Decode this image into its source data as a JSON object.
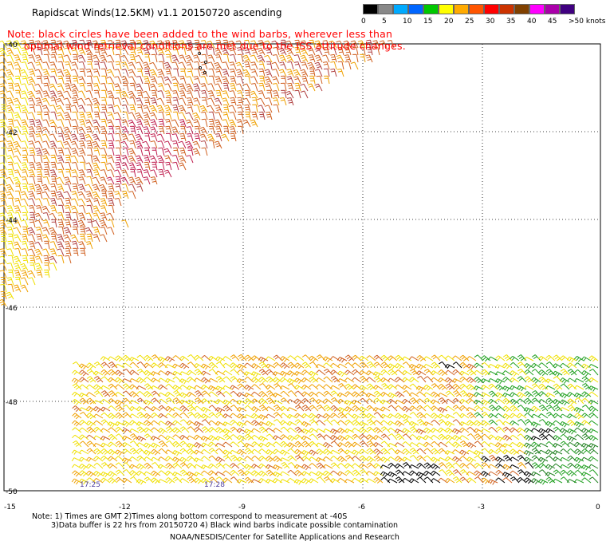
{
  "header": {
    "title": "Rapidscat Winds(12.5KM) v1.1 20150720 ascending",
    "note_line1": "Note: black circles have been added to the wind barbs, wherever less than",
    "note_line2": "optimal wind retrieval conditions are met due to the ISS attitude changes."
  },
  "scale": {
    "labels": [
      "0",
      "5",
      "10",
      "15",
      "20",
      "25",
      "30",
      "35",
      "40",
      "45",
      ">50 knots"
    ],
    "colors": [
      "#000000",
      "#888888",
      "#00aaff",
      "#0066ff",
      "#00c800",
      "#ffff00",
      "#ffaa00",
      "#ff5500",
      "#ff0000",
      "#cc3300",
      "#804000",
      "#ff00ff",
      "#aa00aa",
      "#400080"
    ]
  },
  "axes": {
    "lat_labels": [
      "-40",
      "-42",
      "-44",
      "-46",
      "-48",
      "-50"
    ],
    "lon_labels": [
      "-15",
      "-12",
      "-9",
      "-6",
      "-3",
      "0"
    ]
  },
  "times": {
    "t1": "17:25",
    "t2": "17:28"
  },
  "footer": {
    "line1": "Note: 1) Times are GMT 2)Times along bottom correspond to measurement at -40S",
    "line2": "3)Data buffer is 22 hrs from 20150720 4) Black wind barbs indicate possible contamination",
    "credit": "NOAA/NESDIS/Center for Satellite Applications and Research"
  },
  "barb_colors": {
    "yellow": "#f0e000",
    "orange": "#f0a000",
    "dark_orange": "#d06020",
    "red": "#c02050",
    "green": "#20a020",
    "black": "#000000"
  }
}
